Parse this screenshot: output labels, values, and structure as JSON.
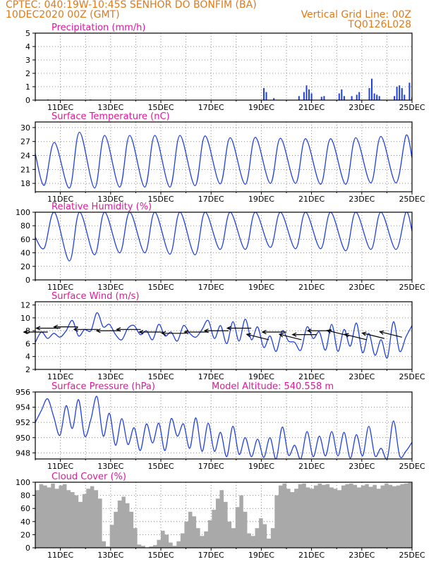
{
  "header": {
    "line1_left": "CPTEC:   040:19W-10:45S   SENHOR DO BONFIM (BA)",
    "line2_left": "10DEC2020 00Z (GMT)",
    "line2_right": "Vertical Grid Line: 00Z",
    "line3_right": "TQ0126L028"
  },
  "colors": {
    "header": "#e07a18",
    "title": "#e0189b",
    "series": "#2040e0",
    "cloud": "#a9a9a9",
    "axis": "#000000",
    "grid": "#888888"
  },
  "x_axis": {
    "ticks": [
      "11DEC",
      "13DEC",
      "15DEC",
      "17DEC",
      "19DEC",
      "21DEC",
      "23DEC",
      "25DEC"
    ]
  },
  "chart_data": [
    {
      "type": "bar",
      "title": "Precipitation (mm/h)",
      "ylim": [
        0,
        5
      ],
      "yticks": [
        "0",
        "1",
        "2",
        "3",
        "4",
        "5"
      ],
      "x_start": "10DEC2020 00Z",
      "x_end": "25DEC2020 00Z",
      "bars": [
        {
          "day": 0.5,
          "value": 0.05
        },
        {
          "day": 1.1,
          "value": 0.04
        },
        {
          "day": 2.2,
          "value": 0.05
        },
        {
          "day": 3.0,
          "value": 0.04
        },
        {
          "day": 9.1,
          "value": 0.9
        },
        {
          "day": 9.2,
          "value": 0.6
        },
        {
          "day": 9.5,
          "value": 0.15
        },
        {
          "day": 10.5,
          "value": 0.3
        },
        {
          "day": 10.7,
          "value": 0.6
        },
        {
          "day": 10.8,
          "value": 1.1
        },
        {
          "day": 10.9,
          "value": 0.8
        },
        {
          "day": 11.0,
          "value": 0.5
        },
        {
          "day": 11.4,
          "value": 0.25
        },
        {
          "day": 11.5,
          "value": 0.3
        },
        {
          "day": 12.1,
          "value": 0.5
        },
        {
          "day": 12.2,
          "value": 0.8
        },
        {
          "day": 12.3,
          "value": 0.3
        },
        {
          "day": 12.6,
          "value": 0.3
        },
        {
          "day": 12.8,
          "value": 0.4
        },
        {
          "day": 12.9,
          "value": 0.6
        },
        {
          "day": 13.3,
          "value": 0.9
        },
        {
          "day": 13.4,
          "value": 1.6
        },
        {
          "day": 13.5,
          "value": 0.5
        },
        {
          "day": 13.6,
          "value": 0.4
        },
        {
          "day": 13.7,
          "value": 0.3
        },
        {
          "day": 14.3,
          "value": 0.3
        },
        {
          "day": 14.4,
          "value": 1.0
        },
        {
          "day": 14.5,
          "value": 1.1
        },
        {
          "day": 14.6,
          "value": 0.9
        },
        {
          "day": 14.7,
          "value": 0.4
        },
        {
          "day": 14.9,
          "value": 1.3
        },
        {
          "day": 15.0,
          "value": 0.2
        }
      ]
    },
    {
      "type": "line",
      "title": "Surface Temperature (nC)",
      "ylim": [
        16.2,
        31.2
      ],
      "yticks": [
        18,
        21,
        24,
        27,
        30
      ],
      "daily_max": [
        26.8,
        29.0,
        28.3,
        28.3,
        28.3,
        28.3,
        28.2,
        27.8,
        27.9,
        27.7,
        27.6,
        27.6,
        27.8,
        28.1,
        28.3
      ],
      "daily_min": [
        17.6,
        17.0,
        17.0,
        17.2,
        17.2,
        17.2,
        17.5,
        17.9,
        17.8,
        18.0,
        18.0,
        17.8,
        17.8,
        18.1,
        18.1
      ],
      "start_value": 24.4,
      "end_value": 23.5
    },
    {
      "type": "line",
      "title": "Relative Humidity (%)",
      "ylim": [
        0,
        100
      ],
      "yticks": [
        0,
        20,
        40,
        60,
        80,
        100
      ],
      "daily_max": [
        100,
        100,
        100,
        100,
        100,
        100,
        100,
        100,
        100,
        100,
        100,
        100,
        100,
        100,
        100
      ],
      "daily_min": [
        47,
        28,
        37,
        40,
        40,
        38,
        37,
        45,
        45,
        48,
        46,
        46,
        43,
        45,
        45
      ],
      "start_value": 63,
      "end_value": 72
    },
    {
      "type": "line",
      "title": "Surface Wind (m/s)",
      "ylim": [
        2,
        12.5
      ],
      "yticks": [
        2,
        4,
        6,
        8,
        10,
        12
      ],
      "values": [
        6.2,
        7.8,
        6.8,
        7.6,
        7.0,
        8.0,
        9.6,
        7.2,
        8.2,
        8.0,
        10.8,
        8.6,
        9.0,
        7.4,
        6.6,
        8.4,
        8.8,
        7.4,
        8.0,
        6.6,
        9.0,
        7.2,
        7.8,
        6.4,
        8.8,
        7.6,
        7.0,
        8.2,
        9.6,
        6.8,
        8.8,
        6.0,
        9.4,
        6.4,
        9.8,
        6.6,
        8.6,
        5.4,
        7.2,
        4.8,
        8.0,
        6.4,
        6.2,
        5.0,
        8.6,
        6.8,
        7.8,
        5.0,
        9.0,
        4.8,
        8.2,
        5.6,
        9.2,
        4.6,
        7.6,
        4.2,
        6.6,
        3.8,
        9.4,
        4.8,
        7.0,
        8.8
      ],
      "arrows": [
        {
          "day": 0.5,
          "v": 7.8,
          "dir": "W"
        },
        {
          "day": 1.0,
          "v": 8.4,
          "dir": "W"
        },
        {
          "day": 1.7,
          "v": 8.6,
          "dir": "W"
        },
        {
          "day": 2.5,
          "v": 8.2,
          "dir": "W"
        },
        {
          "day": 3.4,
          "v": 8.0,
          "dir": "W"
        },
        {
          "day": 4.2,
          "v": 8.2,
          "dir": "W"
        },
        {
          "day": 5.1,
          "v": 7.8,
          "dir": "W"
        },
        {
          "day": 6.0,
          "v": 7.6,
          "dir": "W"
        },
        {
          "day": 6.9,
          "v": 7.8,
          "dir": "W"
        },
        {
          "day": 7.7,
          "v": 8.0,
          "dir": "W"
        },
        {
          "day": 8.6,
          "v": 8.4,
          "dir": "W"
        },
        {
          "day": 9.3,
          "v": 6.6,
          "dir": "NW"
        },
        {
          "day": 10.0,
          "v": 7.8,
          "dir": "W"
        },
        {
          "day": 10.6,
          "v": 6.6,
          "dir": "NW"
        },
        {
          "day": 11.2,
          "v": 7.4,
          "dir": "W"
        },
        {
          "day": 11.8,
          "v": 8.0,
          "dir": "W"
        },
        {
          "day": 12.5,
          "v": 7.2,
          "dir": "NW"
        },
        {
          "day": 13.2,
          "v": 6.6,
          "dir": "NW"
        },
        {
          "day": 13.9,
          "v": 6.8,
          "dir": "NW"
        },
        {
          "day": 14.6,
          "v": 7.0,
          "dir": "NW"
        }
      ]
    },
    {
      "type": "line",
      "title": "Surface Pressure (hPa)",
      "subtitle": "Model Altitude: 540.558  m",
      "ylim": [
        947.2,
        956.0
      ],
      "yticks": [
        948,
        950,
        952,
        954,
        956
      ],
      "values": [
        952.0,
        953.6,
        955.1,
        952.7,
        950.3,
        954.2,
        951.2,
        955.0,
        950.2,
        952.4,
        955.4,
        950.2,
        953.2,
        949.0,
        952.5,
        949.1,
        951.3,
        948.3,
        951.8,
        949.3,
        951.9,
        948.3,
        952.5,
        950.2,
        951.8,
        948.6,
        952.6,
        948.2,
        951.9,
        948.2,
        950.7,
        947.5,
        951.5,
        947.8,
        950.0,
        947.5,
        949.8,
        947.4,
        950.0,
        947.2,
        951.4,
        947.7,
        949.0,
        947.2,
        950.8,
        947.5,
        950.2,
        947.6,
        950.8,
        947.6,
        950.7,
        947.3,
        950.4,
        947.6,
        951.5,
        947.6,
        948.6,
        947.3,
        952.2,
        947.6,
        948.2,
        949.4
      ]
    },
    {
      "type": "area",
      "title": "Cloud Cover (%)",
      "ylim": [
        0,
        100
      ],
      "yticks": [
        0,
        20,
        40,
        60,
        80,
        100
      ],
      "values": [
        88,
        97,
        95,
        92,
        98,
        90,
        95,
        97,
        88,
        85,
        80,
        70,
        82,
        90,
        94,
        88,
        75,
        10,
        2,
        35,
        55,
        72,
        78,
        68,
        55,
        30,
        5,
        3,
        0,
        2,
        4,
        12,
        26,
        20,
        8,
        3,
        10,
        22,
        40,
        55,
        48,
        30,
        18,
        25,
        42,
        58,
        75,
        88,
        70,
        40,
        30,
        62,
        80,
        55,
        22,
        18,
        30,
        45,
        36,
        14,
        30,
        80,
        95,
        98,
        90,
        85,
        90,
        97,
        98,
        92,
        90,
        95,
        98,
        96,
        97,
        92,
        90,
        88,
        95,
        97,
        98,
        96,
        92,
        95,
        97,
        93,
        96,
        90,
        95,
        98,
        96,
        94,
        95,
        97,
        98,
        99
      ]
    }
  ]
}
